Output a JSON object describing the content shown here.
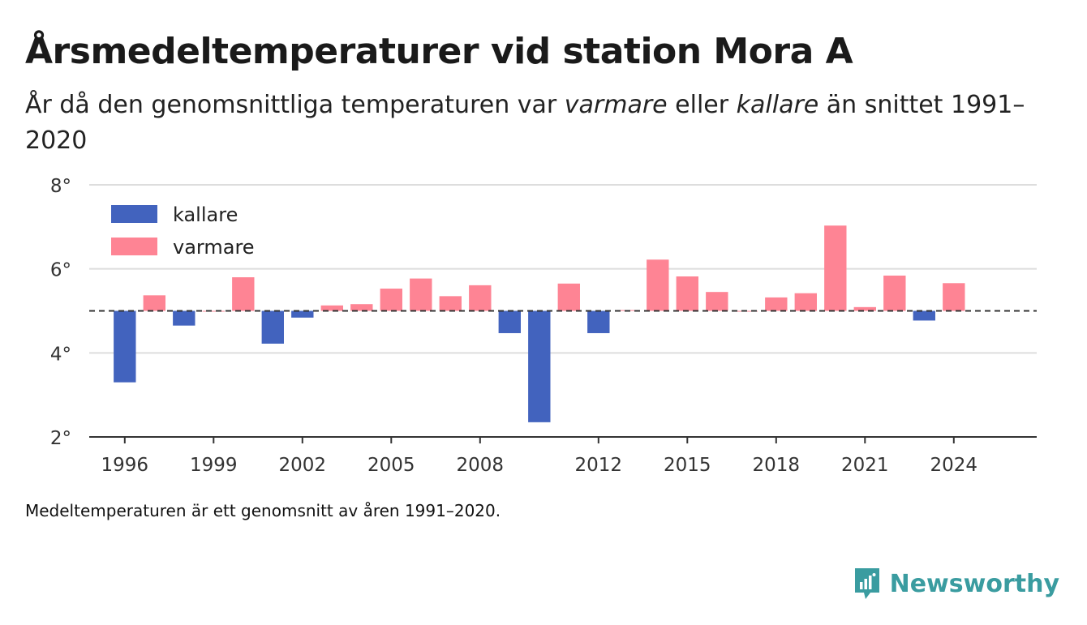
{
  "title": "Årsmedeltemperaturer vid station Mora A",
  "subtitle": {
    "part1": "År då den genomsnittliga temperaturen var ",
    "em1": "varmare",
    "part2": " eller ",
    "em2": "kallare",
    "part3": " än snittet 1991–2020"
  },
  "footnote": "Medeltemperaturen är ett genomsnitt av åren 1991–2020.",
  "brand": {
    "name": "Newsworthy",
    "color": "#3a9ca0"
  },
  "colors": {
    "kallare": "#4263be",
    "varmare": "#fe8494",
    "grid": "#dddddd",
    "baseline": "#333333"
  },
  "chart_data": {
    "type": "bar",
    "baseline": 5.0,
    "ylim": [
      2,
      8
    ],
    "yticks": [
      2,
      4,
      6,
      8
    ],
    "ytick_labels": [
      "2°",
      "4°",
      "6°",
      "8°"
    ],
    "xticks": [
      1996,
      1999,
      2002,
      2005,
      2008,
      2012,
      2015,
      2018,
      2021,
      2024
    ],
    "xlim": [
      1994.8,
      2026.8
    ],
    "grid": true,
    "legend": {
      "position": "top-left",
      "entries": [
        {
          "key": "kallare",
          "label": "kallare"
        },
        {
          "key": "varmare",
          "label": "varmare"
        }
      ]
    },
    "data": [
      {
        "year": 1996,
        "value": 3.3
      },
      {
        "year": 1997,
        "value": 5.37
      },
      {
        "year": 1998,
        "value": 4.65
      },
      {
        "year": 1999,
        "value": 5.0
      },
      {
        "year": 2000,
        "value": 5.8
      },
      {
        "year": 2001,
        "value": 4.22
      },
      {
        "year": 2002,
        "value": 4.84
      },
      {
        "year": 2003,
        "value": 5.13
      },
      {
        "year": 2004,
        "value": 5.16
      },
      {
        "year": 2005,
        "value": 5.53
      },
      {
        "year": 2006,
        "value": 5.77
      },
      {
        "year": 2007,
        "value": 5.35
      },
      {
        "year": 2008,
        "value": 5.61
      },
      {
        "year": 2009,
        "value": 4.47
      },
      {
        "year": 2010,
        "value": 2.35
      },
      {
        "year": 2011,
        "value": 5.65
      },
      {
        "year": 2012,
        "value": 4.47
      },
      {
        "year": 2013,
        "value": 5.02
      },
      {
        "year": 2014,
        "value": 6.22
      },
      {
        "year": 2015,
        "value": 5.82
      },
      {
        "year": 2016,
        "value": 5.45
      },
      {
        "year": 2017,
        "value": 5.0
      },
      {
        "year": 2018,
        "value": 5.32
      },
      {
        "year": 2019,
        "value": 5.42
      },
      {
        "year": 2020,
        "value": 7.03
      },
      {
        "year": 2021,
        "value": 5.09
      },
      {
        "year": 2022,
        "value": 5.84
      },
      {
        "year": 2023,
        "value": 4.77
      },
      {
        "year": 2024,
        "value": 5.66
      }
    ]
  }
}
